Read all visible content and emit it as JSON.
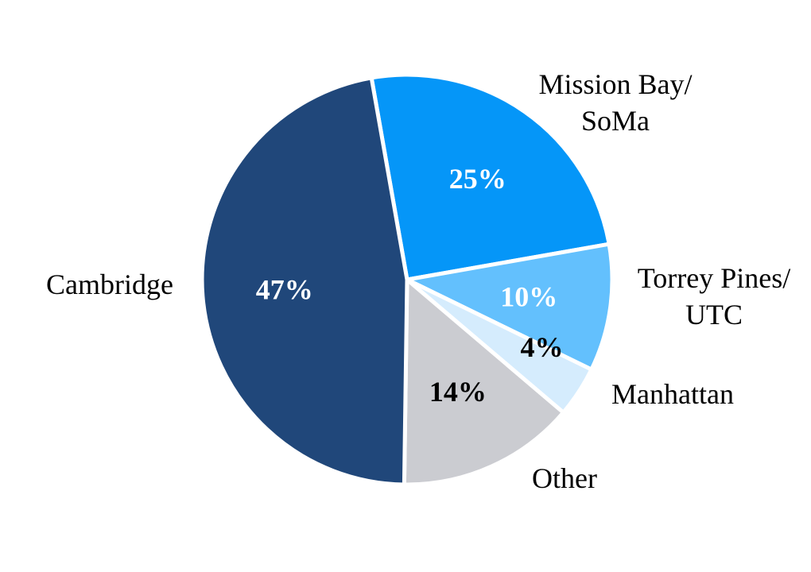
{
  "chart_data": {
    "type": "pie",
    "categories": [
      "Mission Bay/ SoMa",
      "Torrey Pines/ UTC",
      "Manhattan",
      "Other",
      "Cambridge"
    ],
    "values": [
      25,
      10,
      4,
      14,
      47
    ],
    "slices": [
      {
        "label_lines": [
          "Mission Bay/",
          "SoMa"
        ],
        "percent_label": "25%",
        "value": 25,
        "color": "#0596f8",
        "pct_color": "#ffffff"
      },
      {
        "label_lines": [
          "Torrey Pines/",
          "UTC"
        ],
        "percent_label": "10%",
        "value": 10,
        "color": "#63c0fd",
        "pct_color": "#ffffff"
      },
      {
        "label_lines": [
          "Manhattan"
        ],
        "percent_label": "4%",
        "value": 4,
        "color": "#d5ecfd",
        "pct_color": "#000000"
      },
      {
        "label_lines": [
          "Other"
        ],
        "percent_label": "14%",
        "value": 14,
        "color": "#cbccd1",
        "pct_color": "#000000"
      },
      {
        "label_lines": [
          "Cambridge"
        ],
        "percent_label": "47%",
        "value": 47,
        "color": "#20477a",
        "pct_color": "#ffffff"
      }
    ],
    "start_angle_deg": -10,
    "direction": "clockwise",
    "legend": "none"
  }
}
